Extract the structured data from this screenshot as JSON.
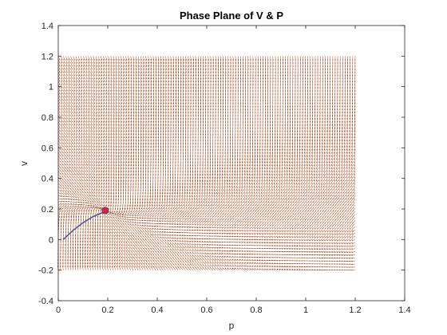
{
  "chart_data": {
    "type": "quiver",
    "title": "Phase Plane of V & P",
    "xlabel": "p",
    "ylabel": "v",
    "xlim": [
      0,
      1.4
    ],
    "ylim": [
      -0.4,
      1.4
    ],
    "xticks": [
      "0",
      "0.2",
      "0.4",
      "0.6",
      "0.8",
      "1",
      "1.2",
      "1.4"
    ],
    "yticks": [
      "-0.4",
      "-0.2",
      "0",
      "0.2",
      "0.4",
      "0.6",
      "0.8",
      "1",
      "1.2",
      "1.4"
    ],
    "grid": false,
    "field": {
      "p_range": [
        0,
        1.2
      ],
      "v_range": [
        -0.2,
        1.2
      ],
      "color": "#d95319",
      "arrow_color": "#3a3a3a"
    },
    "trajectory": {
      "color": "#4a5a8a",
      "points": [
        [
          0.02,
          0.0
        ],
        [
          0.06,
          0.06
        ],
        [
          0.1,
          0.11
        ],
        [
          0.14,
          0.15
        ],
        [
          0.17,
          0.17
        ],
        [
          0.19,
          0.185
        ],
        [
          0.2,
          0.19
        ],
        [
          0.195,
          0.2
        ],
        [
          0.185,
          0.205
        ],
        [
          0.18,
          0.195
        ],
        [
          0.19,
          0.185
        ],
        [
          0.2,
          0.19
        ]
      ]
    },
    "equilibrium": {
      "p": 0.19,
      "v": 0.19,
      "color": "#e02040"
    }
  }
}
